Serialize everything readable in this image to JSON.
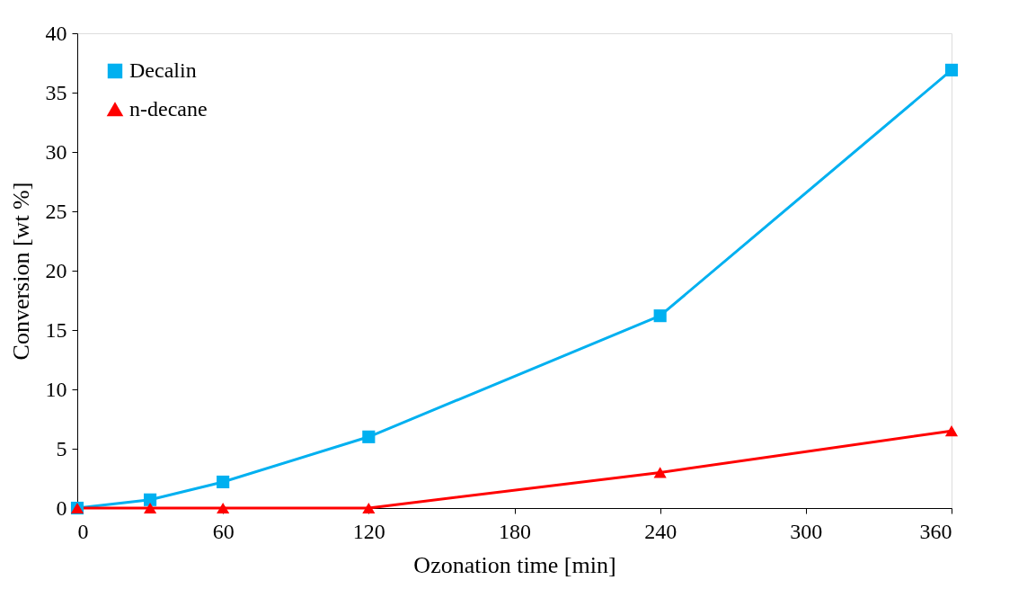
{
  "chart_data": {
    "type": "line",
    "xlabel": "Ozonation time [min]",
    "ylabel": "Conversion [wt %]",
    "x": [
      0,
      30,
      60,
      120,
      240,
      360
    ],
    "series": [
      {
        "name": "Decalin",
        "color": "#00b0f0",
        "marker": "square",
        "values": [
          0,
          0.7,
          2.2,
          6,
          16.2,
          36.9
        ]
      },
      {
        "name": "n-decane",
        "color": "#ff0000",
        "marker": "triangle",
        "values": [
          0,
          0,
          0,
          0,
          3,
          6.5
        ]
      }
    ],
    "xlim": [
      0,
      360
    ],
    "xticks": [
      0,
      60,
      120,
      180,
      240,
      300,
      360
    ],
    "ylim": [
      0,
      40
    ],
    "yticks": [
      0,
      5,
      10,
      15,
      20,
      25,
      30,
      35,
      40
    ],
    "grid": false,
    "legend": "top left",
    "line_style": "solid"
  }
}
